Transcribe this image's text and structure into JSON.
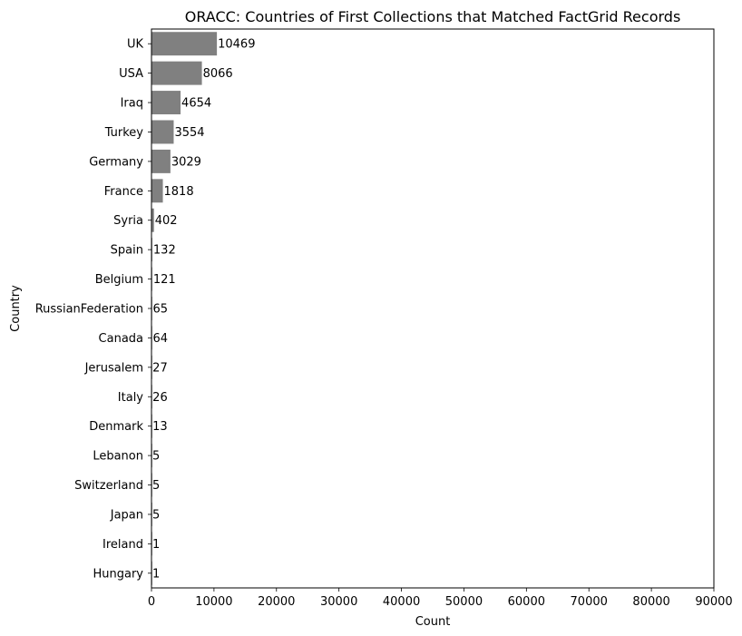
{
  "chart_data": {
    "type": "bar",
    "orientation": "horizontal",
    "title": "ORACC: Countries of First Collections that Matched FactGrid Records",
    "xlabel": "Count",
    "ylabel": "Country",
    "xlim": [
      0,
      90000
    ],
    "xticks": [
      0,
      10000,
      20000,
      30000,
      40000,
      50000,
      60000,
      70000,
      80000,
      90000
    ],
    "grid": false,
    "bar_color": "#808080",
    "categories": [
      "UK",
      "USA",
      "Iraq",
      "Turkey",
      "Germany",
      "France",
      "Syria",
      "Spain",
      "Belgium",
      "RussianFederation",
      "Canada",
      "Jerusalem",
      "Italy",
      "Denmark",
      "Lebanon",
      "Switzerland",
      "Japan",
      "Ireland",
      "Hungary"
    ],
    "values": [
      10469,
      8066,
      4654,
      3554,
      3029,
      1818,
      402,
      132,
      121,
      65,
      64,
      27,
      26,
      13,
      5,
      5,
      5,
      1,
      1
    ]
  }
}
